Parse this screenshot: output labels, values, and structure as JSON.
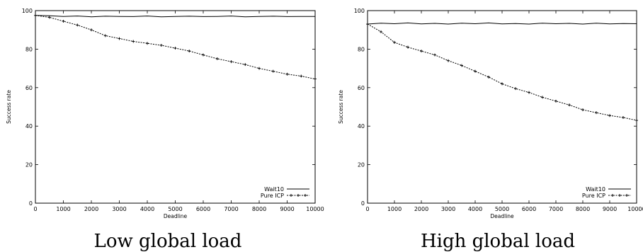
{
  "chart_data": [
    {
      "type": "line",
      "caption": "Low global load",
      "xlabel": "Deadline",
      "ylabel": "Success rate",
      "xlim": [
        0,
        10000
      ],
      "ylim": [
        0,
        100
      ],
      "xticks": [
        0,
        1000,
        2000,
        3000,
        4000,
        5000,
        6000,
        7000,
        8000,
        9000,
        10000
      ],
      "yticks": [
        0,
        20,
        40,
        60,
        80,
        100
      ],
      "grid": false,
      "legend_position": "bottom-right",
      "series": [
        {
          "name": "Wait10",
          "style": "solid",
          "x": [
            0,
            500,
            1000,
            1500,
            2000,
            2500,
            3000,
            3500,
            4000,
            4500,
            5000,
            5500,
            6000,
            6500,
            7000,
            7500,
            8000,
            8500,
            9000,
            9500,
            10000
          ],
          "y": [
            97.5,
            97.3,
            97.0,
            97.2,
            96.8,
            97.1,
            97.0,
            96.9,
            97.2,
            96.8,
            97.0,
            97.1,
            96.9,
            97.0,
            97.2,
            96.8,
            97.0,
            97.1,
            96.9,
            97.0,
            97.0
          ]
        },
        {
          "name": "Pure ICP",
          "style": "dashed-markers",
          "x": [
            0,
            500,
            1000,
            1500,
            2000,
            2500,
            3000,
            3500,
            4000,
            4500,
            5000,
            5500,
            6000,
            6500,
            7000,
            7500,
            8000,
            8500,
            9000,
            9500,
            10000
          ],
          "y": [
            97.5,
            96.5,
            94.5,
            92.5,
            90.0,
            87.0,
            85.5,
            84.0,
            83.0,
            82.0,
            80.5,
            79.0,
            77.0,
            75.0,
            73.5,
            72.0,
            70.0,
            68.5,
            67.0,
            66.0,
            64.5
          ]
        }
      ]
    },
    {
      "type": "line",
      "caption": "High global load",
      "xlabel": "Deadline",
      "ylabel": "Success rate",
      "xlim": [
        0,
        10000
      ],
      "ylim": [
        0,
        100
      ],
      "xticks": [
        0,
        1000,
        2000,
        3000,
        4000,
        5000,
        6000,
        7000,
        8000,
        9000,
        10000
      ],
      "yticks": [
        0,
        20,
        40,
        60,
        80,
        100
      ],
      "grid": false,
      "legend_position": "bottom-right",
      "series": [
        {
          "name": "Wait10",
          "style": "solid",
          "x": [
            0,
            500,
            1000,
            1500,
            2000,
            2500,
            3000,
            3500,
            4000,
            4500,
            5000,
            5500,
            6000,
            6500,
            7000,
            7500,
            8000,
            8500,
            9000,
            9500,
            10000
          ],
          "y": [
            93.0,
            93.5,
            93.2,
            93.6,
            93.1,
            93.4,
            93.0,
            93.5,
            93.2,
            93.6,
            93.1,
            93.3,
            93.0,
            93.5,
            93.2,
            93.4,
            93.0,
            93.5,
            93.1,
            93.3,
            93.2
          ]
        },
        {
          "name": "Pure ICP",
          "style": "dashed-markers",
          "x": [
            0,
            500,
            1000,
            1500,
            2000,
            2500,
            3000,
            3500,
            4000,
            4500,
            5000,
            5500,
            6000,
            6500,
            7000,
            7500,
            8000,
            8500,
            9000,
            9500,
            10000
          ],
          "y": [
            93.0,
            89.0,
            83.5,
            81.0,
            79.0,
            77.0,
            74.0,
            71.5,
            68.5,
            65.5,
            62.0,
            59.5,
            57.5,
            55.0,
            53.0,
            51.0,
            48.5,
            47.0,
            45.5,
            44.5,
            43.0
          ]
        }
      ]
    }
  ]
}
